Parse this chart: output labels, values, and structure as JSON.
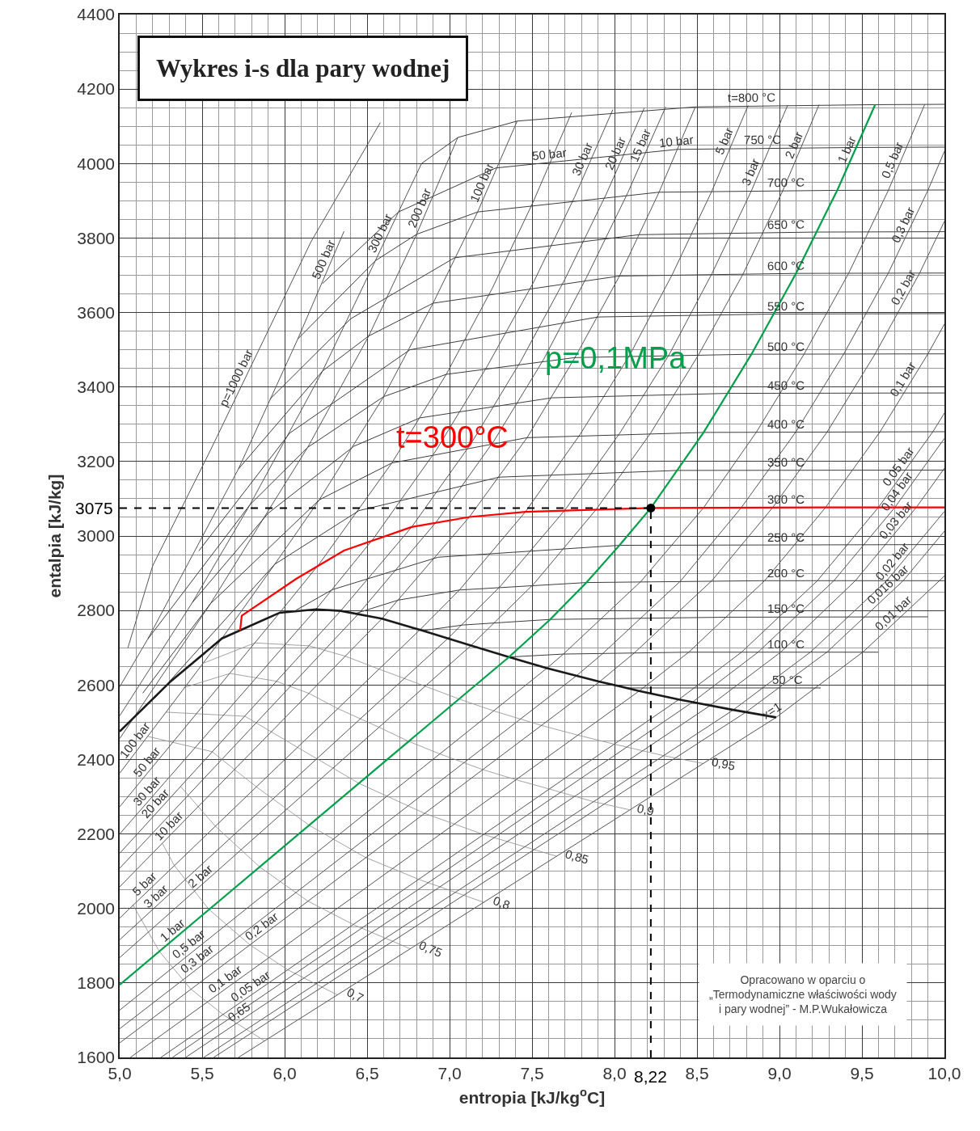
{
  "chart_data": {
    "type": "line",
    "title": "Wykres i-s dla pary wodnej",
    "xlabel": "entropia [kJ/kg$^{o}$C]",
    "ylabel": "entalpia [kJ/kg]",
    "xlim": [
      5.0,
      10.0
    ],
    "ylim": [
      1600,
      4400
    ],
    "xticks": [
      {
        "value": 5.0,
        "label": "5,0"
      },
      {
        "value": 5.5,
        "label": "5,5"
      },
      {
        "value": 6.0,
        "label": "6,0"
      },
      {
        "value": 6.5,
        "label": "6,5"
      },
      {
        "value": 7.0,
        "label": "7,0"
      },
      {
        "value": 7.5,
        "label": "7,5"
      },
      {
        "value": 8.0,
        "label": "8,0"
      },
      {
        "value": 8.5,
        "label": "8,5"
      },
      {
        "value": 9.0,
        "label": "9,0"
      },
      {
        "value": 9.5,
        "label": "9,5"
      },
      {
        "value": 10.0,
        "label": "10,0"
      }
    ],
    "yticks": [
      1600,
      1800,
      2000,
      2200,
      2400,
      2600,
      2800,
      3000,
      3200,
      3400,
      3600,
      3800,
      4000,
      4200,
      4400
    ],
    "grid": true,
    "series": [
      {
        "color": "#8c8c8c",
        "x": [
          5.51,
          5.82,
          6.15,
          6.37,
          6.57,
          6.85,
          7.06,
          7.27,
          7.56,
          7.78,
          8.0,
          8.3,
          8.54
        ],
        "values": [
          2659,
          2713,
          2705,
          2677,
          2643,
          2597,
          2562,
          2530,
          2491,
          2465,
          2441,
          2410,
          2389
        ]
      },
      {
        "color": "#8c8c8c",
        "x": [
          5.39,
          5.67,
          5.95,
          6.15,
          6.32,
          6.57,
          6.75,
          6.94,
          7.2,
          7.4,
          7.61,
          7.87,
          8.09
        ],
        "values": [
          2593,
          2631,
          2610,
          2577,
          2537,
          2487,
          2449,
          2415,
          2373,
          2346,
          2320,
          2287,
          2265
        ]
      },
      {
        "color": "#8c8c8c",
        "x": [
          5.28,
          5.76,
          6.08,
          6.45,
          6.85,
          7.21,
          7.65
        ],
        "values": [
          2527,
          2516,
          2432,
          2336,
          2255,
          2198,
          2140
        ]
      },
      {
        "color": "#8c8c8c",
        "x": [
          5.17,
          5.56,
          5.83,
          6.15,
          6.49,
          6.82,
          7.21
        ],
        "values": [
          2462,
          2421,
          2326,
          2223,
          2137,
          2077,
          2016
        ]
      },
      {
        "color": "#8c8c8c",
        "x": [
          5.37,
          5.58,
          5.85,
          6.14,
          6.42,
          6.76
        ],
        "values": [
          2327,
          2221,
          2111,
          2020,
          1956,
          1892
        ]
      },
      {
        "color": "#8c8c8c",
        "x": [
          5.26,
          5.33,
          5.54,
          5.79,
          6.02,
          6.32
        ],
        "values": [
          2174,
          2116,
          1998,
          1902,
          1835,
          1768
        ]
      },
      {
        "color": "#8c8c8c",
        "x": [
          5.08,
          5.24,
          5.43,
          5.63,
          5.88
        ],
        "values": [
          2010,
          1885,
          1784,
          1714,
          1644
        ]
      },
      {
        "color": "#555555",
        "x": [
          5.05,
          5.2,
          5.55,
          6.16,
          6.58
        ],
        "values": [
          2700,
          2920,
          3230,
          3790,
          4110
        ]
      },
      {
        "color": "#555555",
        "x": [
          5.0,
          5.17,
          5.72,
          6.08,
          6.36
        ],
        "values": [
          2595,
          2723,
          3180,
          3529,
          3818
        ]
      },
      {
        "color": "#555555",
        "x": [
          5.0,
          5.44,
          5.79,
          6.23,
          6.55,
          6.83
        ],
        "values": [
          2517,
          2821,
          3084,
          3443,
          3739,
          4000
        ]
      },
      {
        "color": "#555555",
        "x": [
          5.0,
          5.55,
          6.14,
          6.51,
          6.8,
          7.05
        ],
        "values": [
          2456,
          2818,
          3238,
          3537,
          3810,
          4070
        ]
      },
      {
        "color": "#555555",
        "x": [
          5.0,
          5.62,
          5.94,
          6.21,
          6.6,
          6.9,
          7.17,
          7.41
        ],
        "values": [
          2363,
          2725,
          2924,
          3097,
          3374,
          3625,
          3870,
          4114
        ]
      },
      {
        "color": "#555555",
        "x": [
          5.0,
          5.97,
          6.21,
          6.65,
          6.98,
          7.26,
          7.51,
          7.74
        ],
        "values": [
          2273,
          2794,
          2925,
          3196,
          3434,
          3666,
          3900,
          4137
        ]
      },
      {
        "color": "#555555",
        "x": [
          5.0,
          6.19,
          6.54,
          6.92,
          7.23,
          7.51,
          7.76,
          7.99
        ],
        "values": [
          2200,
          2803,
          2994,
          3231,
          3457,
          3682,
          3912,
          4145
        ]
      },
      {
        "color": "#555555",
        "x": [
          5.0,
          6.34,
          6.77,
          7.13,
          7.43,
          7.7,
          7.95,
          8.18
        ],
        "values": [
          2148,
          2799,
          3024,
          3248,
          3468,
          3690,
          3918,
          4149
        ]
      },
      {
        "color": "#555555",
        "x": [
          5.0,
          6.45,
          6.92,
          7.27,
          7.57,
          7.83,
          8.08,
          8.31
        ],
        "values": [
          2108,
          2792,
          3038,
          3256,
          3474,
          3694,
          3921,
          4152
        ]
      },
      {
        "color": "#555555",
        "x": [
          5.0,
          6.59,
          7.12,
          7.47,
          7.76,
          8.03,
          8.27,
          8.49
        ],
        "values": [
          2058,
          2778,
          3051,
          3264,
          3479,
          3698,
          3923,
          4152
        ]
      },
      {
        "color": "#555555",
        "x": [
          5.0,
          6.82,
          7.06,
          7.46,
          7.79,
          8.09,
          8.35,
          8.59,
          8.81
        ],
        "values": [
          1974,
          2748,
          2855,
          3065,
          3272,
          3484,
          3702,
          3926,
          4156
        ]
      },
      {
        "color": "#555555",
        "x": [
          5.0,
          6.99,
          7.31,
          7.7,
          8.03,
          8.33,
          8.59,
          8.83,
          9.05
        ],
        "values": [
          1916,
          2725,
          2866,
          3070,
          3275,
          3486,
          3704,
          3927,
          4157
        ]
      },
      {
        "color": "#555555",
        "x": [
          5.0,
          7.13,
          7.51,
          7.89,
          8.22,
          8.51,
          8.78,
          9.02,
          9.24
        ],
        "values": [
          1868,
          2706,
          2871,
          3072,
          3277,
          3487,
          3704,
          3927,
          4158
        ]
      },
      {
        "color": "#555555",
        "x": [
          5.0,
          7.59,
          7.69,
          8.16,
          8.54,
          8.86,
          9.15,
          9.42,
          9.66,
          9.88
        ],
        "values": [
          1727,
          2645,
          2683,
          2878,
          3076,
          3279,
          3489,
          3706,
          3928,
          4158
        ]
      },
      {
        "color": "#555555",
        "x": [
          5.0,
          7.77,
          7.93,
          8.4,
          8.77,
          9.1,
          9.39,
          9.66,
          9.9,
          10.0
        ],
        "values": [
          1677,
          2625,
          2685,
          2879,
          3077,
          3280,
          3489,
          3706,
          3928,
          4033
        ]
      },
      {
        "color": "#555555",
        "x": [
          5.0,
          7.91,
          8.12,
          8.59,
          8.96,
          9.29,
          9.58,
          9.85,
          10.0
        ],
        "values": [
          1639,
          2609,
          2686,
          2880,
          3077,
          3280,
          3489,
          3706,
          3845
        ]
      },
      {
        "color": "#555555",
        "x": [
          5.065,
          8.15,
          8.45,
          8.91,
          9.28,
          9.61,
          9.9,
          10.0
        ],
        "values": [
          1600,
          2584,
          2688,
          2880,
          3077,
          3280,
          3489,
          3569
        ]
      },
      {
        "color": "#555555",
        "x": [
          5.25,
          8.39,
          8.77,
          9.23,
          9.6,
          9.93,
          10.0
        ],
        "values": [
          1600,
          2561,
          2688,
          2880,
          3077,
          3280,
          3330
        ]
      },
      {
        "color": "#555555",
        "x": [
          5.32,
          8.47,
          8.87,
          9.33,
          9.7,
          10.0
        ],
        "values": [
          1600,
          2553,
          2688,
          2880,
          3077,
          3262
        ]
      },
      {
        "color": "#555555",
        "x": [
          5.4,
          8.58,
          9.01,
          9.46,
          9.83,
          10.0
        ],
        "values": [
          1600,
          2545,
          2689,
          2880,
          3077,
          3182
        ]
      },
      {
        "color": "#555555",
        "x": [
          5.51,
          8.72,
          9.19,
          9.65,
          10.0
        ],
        "values": [
          1600,
          2533,
          2689,
          2880,
          3066
        ]
      },
      {
        "color": "#555555",
        "x": [
          5.57,
          8.8,
          9.29,
          9.75,
          10.0
        ],
        "values": [
          1600,
          2528,
          2689,
          2880,
          3013
        ]
      },
      {
        "color": "#555555",
        "x": [
          5.72,
          8.98,
          9.51,
          9.97,
          10.0
        ],
        "values": [
          1600,
          2513,
          2690,
          2880,
          2893
        ]
      },
      {
        "color": "#3d3d3d",
        "x": [
          8.07,
          9.25
        ],
        "values": [
          2592,
          2592
        ]
      },
      {
        "color": "#3d3d3d",
        "x": [
          7.36,
          7.69,
          8.45,
          9.6
        ],
        "values": [
          2675,
          2683,
          2688,
          2688
        ]
      },
      {
        "color": "#3d3d3d",
        "x": [
          6.84,
          7.08,
          7.61,
          8.69,
          9.9
        ],
        "values": [
          2746,
          2761,
          2776,
          2782,
          2783
        ]
      },
      {
        "color": "#3d3d3d",
        "x": [
          6.43,
          6.69,
          7.06,
          7.83,
          8.91,
          10.0
        ],
        "values": [
          2792,
          2828,
          2855,
          2875,
          2880,
          2880
        ]
      },
      {
        "color": "#3d3d3d",
        "x": [
          6.07,
          6.29,
          6.93,
          8.03,
          10.0
        ],
        "values": [
          2801,
          2856,
          2943,
          2975,
          2977
        ]
      },
      {
        "color": "#3d3d3d",
        "x": [
          5.21,
          5.94,
          6.45,
          7.3,
          8.38,
          10.0
        ],
        "values": [
          2564,
          2924,
          3068,
          3158,
          3176,
          3177
        ]
      },
      {
        "color": "#3d3d3d",
        "x": [
          5.14,
          5.55,
          6.21,
          6.65,
          7.47,
          8.54,
          10.0
        ],
        "values": [
          2578,
          2818,
          3097,
          3196,
          3264,
          3278,
          3280
        ]
      },
      {
        "color": "#3d3d3d",
        "x": [
          5.44,
          5.9,
          6.42,
          6.82,
          7.62,
          8.69,
          10.0
        ],
        "values": [
          2821,
          3061,
          3241,
          3317,
          3371,
          3383,
          3384
        ]
      },
      {
        "color": "#3d3d3d",
        "x": [
          5.17,
          5.79,
          6.14,
          6.6,
          6.98,
          7.76,
          8.83,
          10.0
        ],
        "values": [
          2723,
          3084,
          3238,
          3374,
          3434,
          3479,
          3488,
          3489
        ]
      },
      {
        "color": "#3d3d3d",
        "x": [
          5.48,
          6.03,
          6.76,
          7.9,
          8.97,
          10.0
        ],
        "values": [
          2960,
          3276,
          3500,
          3588,
          3596,
          3597
        ]
      },
      {
        "color": "#3d3d3d",
        "x": [
          5.72,
          6.23,
          6.51,
          6.9,
          8.03,
          9.1,
          10.0
        ],
        "values": [
          3180,
          3443,
          3537,
          3625,
          3698,
          3705,
          3706
        ]
      },
      {
        "color": "#3d3d3d",
        "x": [
          5.91,
          6.4,
          7.03,
          8.15,
          9.22,
          10.0
        ],
        "values": [
          3367,
          3583,
          3747,
          3809,
          3816,
          3817
        ]
      },
      {
        "color": "#3d3d3d",
        "x": [
          6.08,
          6.55,
          6.8,
          7.17,
          8.27,
          9.34,
          10.0
        ],
        "values": [
          3529,
          3739,
          3810,
          3870,
          3923,
          3928,
          3929
        ]
      },
      {
        "color": "#3d3d3d",
        "x": [
          6.23,
          6.69,
          7.28,
          8.38,
          9.45,
          10.0
        ],
        "values": [
          3678,
          3870,
          3988,
          4038,
          4043,
          4044
        ]
      },
      {
        "color": "#3d3d3d",
        "x": [
          6.83,
          7.05,
          7.41,
          8.49,
          9.56,
          10.0
        ],
        "values": [
          4000,
          4070,
          4114,
          4152,
          4158,
          4159
        ]
      },
      {
        "color": "#1a1a1a",
        "x": [
          5.0,
          5.31,
          5.62,
          5.97,
          6.19,
          6.34,
          6.59,
          6.82,
          7.13,
          7.36,
          7.59,
          7.91,
          8.15,
          8.39,
          8.72,
          8.98
        ],
        "values": [
          2475,
          2610,
          2725,
          2794,
          2803,
          2799,
          2778,
          2748,
          2706,
          2675,
          2645,
          2609,
          2584,
          2561,
          2533,
          2513
        ]
      },
      {
        "name": "t=300°C",
        "color": "#ff0000",
        "x": [
          5.73,
          5.74,
          6.07,
          6.36,
          6.77,
          7.12,
          7.46,
          8.22,
          9.28,
          10.0
        ],
        "values": [
          2746,
          2786,
          2885,
          2961,
          3024,
          3051,
          3065,
          3075,
          3077,
          3077
        ]
      },
      {
        "name": "p=0,1MPa",
        "color": "#00a04a",
        "x": [
          5.0,
          6.0,
          7.0,
          7.36,
          7.61,
          7.83,
          8.03,
          8.22,
          8.54,
          8.83,
          9.1,
          9.35,
          9.58
        ],
        "values": [
          1795,
          2168,
          2541,
          2675,
          2776,
          2875,
          2975,
          3075,
          3278,
          3488,
          3705,
          3928,
          4158
        ]
      },
      {
        "type": "scatter",
        "marker": "circle",
        "color": "#000000",
        "x": [
          8.22
        ],
        "values": [
          3075
        ]
      }
    ],
    "ref_lines": [
      {
        "axis": "x",
        "value": 8.22,
        "label": "8,22",
        "color": "#000000",
        "line_style": "dashed"
      },
      {
        "axis": "y",
        "value": 3075,
        "label": "3075",
        "color": "#000000",
        "line_style": "dashed"
      }
    ],
    "annotations": [
      {
        "text": "p=1000 bar",
        "x": 5.75,
        "y": 3414
      },
      {
        "text": "500 bar",
        "x": 6.28,
        "y": 3735
      },
      {
        "text": "300 bar",
        "x": 6.62,
        "y": 3804
      },
      {
        "text": "200 bar",
        "x": 6.86,
        "y": 3872
      },
      {
        "text": "100 bar",
        "x": 7.24,
        "y": 3941
      },
      {
        "text": "50 bar",
        "x": 7.61,
        "y": 4003
      },
      {
        "text": "30 bar",
        "x": 7.85,
        "y": 4003
      },
      {
        "text": "20 bar",
        "x": 8.05,
        "y": 4018
      },
      {
        "text": "15 bar",
        "x": 8.2,
        "y": 4041
      },
      {
        "text": "10 bar",
        "x": 8.38,
        "y": 4038
      },
      {
        "text": "5 bar",
        "x": 8.71,
        "y": 4051
      },
      {
        "text": "3 bar",
        "x": 8.87,
        "y": 3969
      },
      {
        "text": "2 bar",
        "x": 9.13,
        "y": 4042
      },
      {
        "text": "1 bar",
        "x": 9.45,
        "y": 4028
      },
      {
        "text": "0,5 bar",
        "x": 9.73,
        "y": 4001
      },
      {
        "text": "0,3 bar",
        "x": 9.79,
        "y": 3826
      },
      {
        "text": "0,2 bar",
        "x": 9.79,
        "y": 3658
      },
      {
        "text": "0,1 bar",
        "x": 9.79,
        "y": 3410
      },
      {
        "text": "0,05 bar",
        "x": 9.76,
        "y": 3175
      },
      {
        "text": "0,04 bar",
        "x": 9.75,
        "y": 3108
      },
      {
        "text": "0,03 bar",
        "x": 9.74,
        "y": 3029
      },
      {
        "text": "0,02 bar",
        "x": 9.72,
        "y": 2917
      },
      {
        "text": "0,016 bar",
        "x": 9.69,
        "y": 2855
      },
      {
        "text": "0,01 bar",
        "x": 9.72,
        "y": 2777
      },
      {
        "text": "t=800 °C",
        "x": 8.83,
        "y": 4156
      },
      {
        "text": "750 °C",
        "x": 8.9,
        "y": 4043
      },
      {
        "text": "700 °C",
        "x": 9.04,
        "y": 3928
      },
      {
        "text": "650 °C",
        "x": 9.04,
        "y": 3816
      },
      {
        "text": "600 °C",
        "x": 9.04,
        "y": 3705
      },
      {
        "text": "550 °C",
        "x": 9.04,
        "y": 3596
      },
      {
        "text": "500 °C",
        "x": 9.04,
        "y": 3488
      },
      {
        "text": "450 °C",
        "x": 9.04,
        "y": 3383
      },
      {
        "text": "400 °C",
        "x": 9.04,
        "y": 3278
      },
      {
        "text": "350 °C",
        "x": 9.04,
        "y": 3177
      },
      {
        "text": "300 °C",
        "x": 9.04,
        "y": 3077
      },
      {
        "text": "250 °C",
        "x": 9.04,
        "y": 2976
      },
      {
        "text": "200 °C",
        "x": 9.04,
        "y": 2880
      },
      {
        "text": "150 °C",
        "x": 9.04,
        "y": 2783
      },
      {
        "text": "100 °C",
        "x": 9.04,
        "y": 2688
      },
      {
        "text": "50 °C",
        "x": 9.05,
        "y": 2592
      },
      {
        "text": "x=1",
        "x": 8.98,
        "y": 2513
      },
      {
        "text": "100 bar",
        "x": 5.13,
        "y": 2439
      },
      {
        "text": "50 bar",
        "x": 5.2,
        "y": 2380
      },
      {
        "text": "30 bar",
        "x": 5.2,
        "y": 2301
      },
      {
        "text": "20 bar",
        "x": 5.25,
        "y": 2269
      },
      {
        "text": "10 bar",
        "x": 5.33,
        "y": 2207
      },
      {
        "text": "5 bar",
        "x": 5.18,
        "y": 2051
      },
      {
        "text": "3 bar",
        "x": 5.25,
        "y": 2018
      },
      {
        "text": "2 bar",
        "x": 5.52,
        "y": 2072
      },
      {
        "text": "1 bar",
        "x": 5.35,
        "y": 1925
      },
      {
        "text": "0,5 bar",
        "x": 5.45,
        "y": 1887
      },
      {
        "text": "0,3 bar",
        "x": 5.5,
        "y": 1848
      },
      {
        "text": "0,2 bar",
        "x": 5.89,
        "y": 1935
      },
      {
        "text": "0,1 bar",
        "x": 5.67,
        "y": 1793
      },
      {
        "text": "0,05 bar",
        "x": 5.82,
        "y": 1774
      },
      {
        "text": "0,95",
        "x": 8.54,
        "y": 2389
      },
      {
        "text": "0,9",
        "x": 8.09,
        "y": 2265
      },
      {
        "text": "0,85",
        "x": 7.65,
        "y": 2140
      },
      {
        "text": "0,8",
        "x": 7.21,
        "y": 2016
      },
      {
        "text": "0,75",
        "x": 6.76,
        "y": 1892
      },
      {
        "text": "0,7",
        "x": 6.32,
        "y": 1768
      },
      {
        "text": "0,65",
        "x": 5.75,
        "y": 1704
      },
      "Opracowano w oparciu o\n„Termodynamiczne właściwości wody\ni pary wodnej” - M.P.Wukałowicza"
    ]
  }
}
